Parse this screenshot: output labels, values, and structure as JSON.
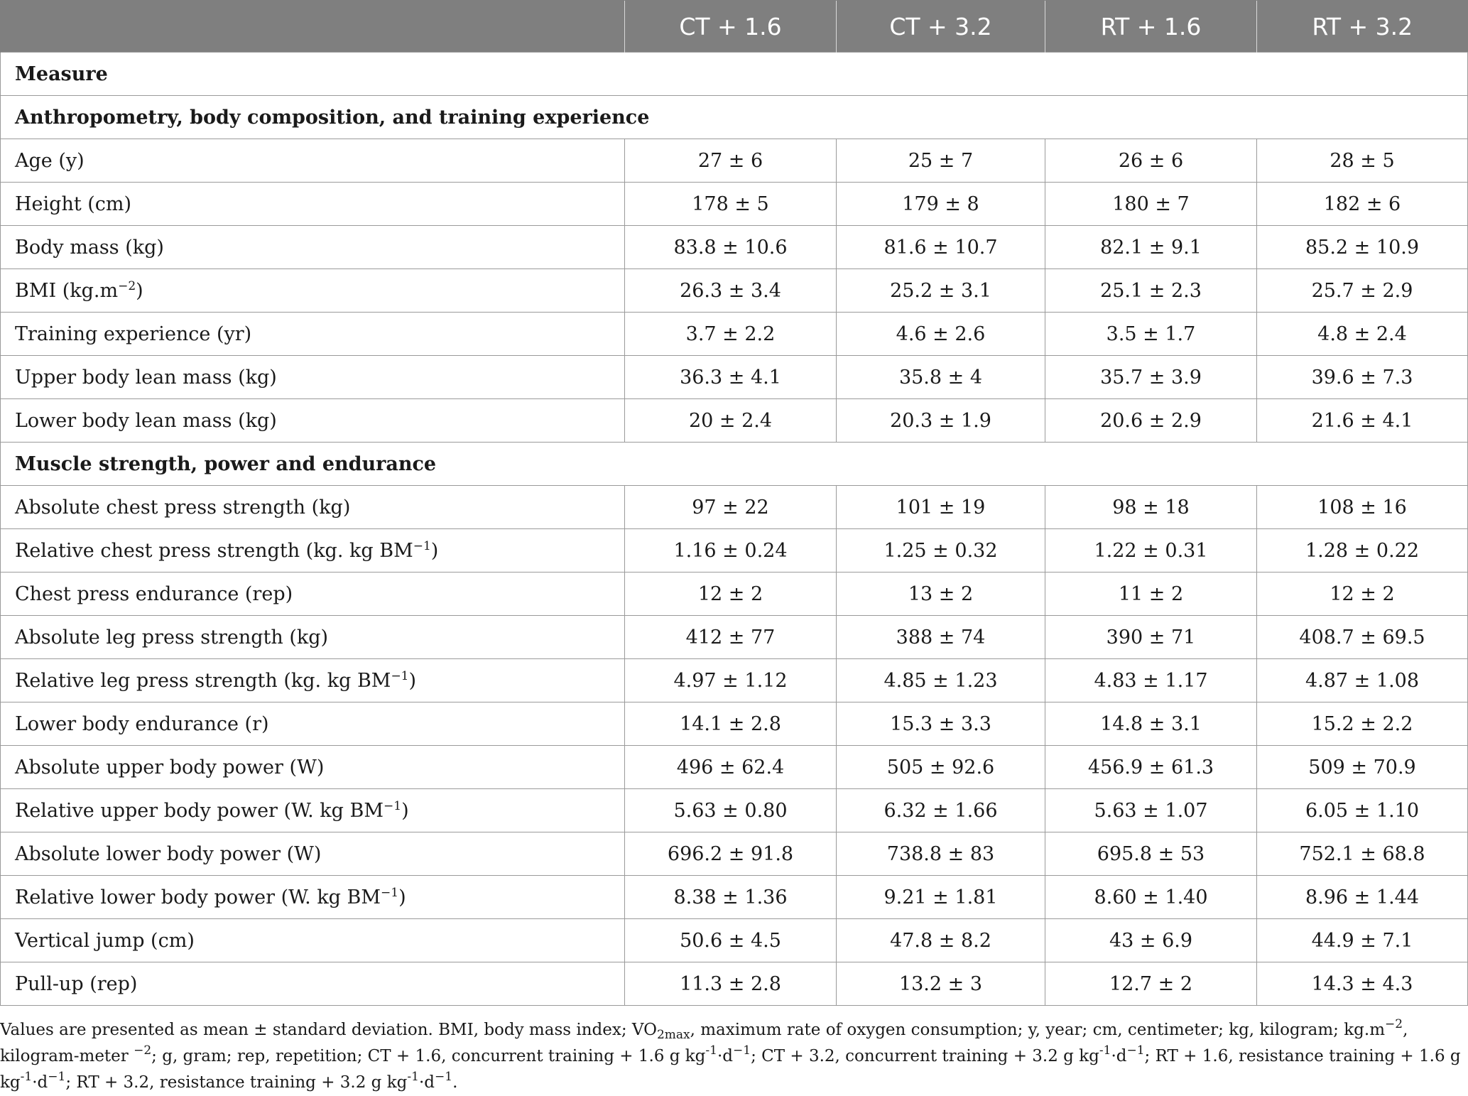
{
  "table": {
    "columns": [
      "",
      "CT + 1.6",
      "CT + 3.2",
      "RT + 1.6",
      "RT + 3.2"
    ],
    "measure_label": "Measure",
    "sections": [
      {
        "title": "Anthropometry, body composition, and training experience",
        "rows": [
          {
            "label": "Age (y)",
            "values": [
              "27 ± 6",
              "25 ± 7",
              "26 ± 6",
              "28 ± 5"
            ]
          },
          {
            "label": "Height (cm)",
            "values": [
              "178 ± 5",
              "179 ± 8",
              "180 ± 7",
              "182 ± 6"
            ]
          },
          {
            "label": "Body mass (kg)",
            "values": [
              "83.8 ± 10.6",
              "81.6 ± 10.7",
              "82.1 ± 9.1",
              "85.2 ± 10.9"
            ]
          },
          {
            "label": "BMI (kg.m",
            "label_sup": "−2",
            "label_tail": ")",
            "values": [
              "26.3 ± 3.4",
              "25.2 ± 3.1",
              "25.1 ± 2.3",
              "25.7 ± 2.9"
            ]
          },
          {
            "label": "Training experience (yr)",
            "values": [
              "3.7 ± 2.2",
              "4.6 ± 2.6",
              "3.5 ± 1.7",
              "4.8 ± 2.4"
            ]
          },
          {
            "label": "Upper body lean mass (kg)",
            "values": [
              "36.3 ± 4.1",
              "35.8 ± 4",
              "35.7 ± 3.9",
              "39.6 ± 7.3"
            ]
          },
          {
            "label": "Lower body lean mass (kg)",
            "values": [
              "20 ± 2.4",
              "20.3 ± 1.9",
              "20.6 ± 2.9",
              "21.6 ± 4.1"
            ]
          }
        ]
      },
      {
        "title": "Muscle strength, power and endurance",
        "rows": [
          {
            "label": "Absolute chest press strength (kg)",
            "values": [
              "97 ± 22",
              "101 ± 19",
              "98 ± 18",
              "108 ± 16"
            ]
          },
          {
            "label": "Relative chest press strength (kg. kg BM",
            "label_sup": "−1",
            "label_tail": ")",
            "values": [
              "1.16 ± 0.24",
              "1.25 ± 0.32",
              "1.22 ± 0.31",
              "1.28 ± 0.22"
            ]
          },
          {
            "label": "Chest press endurance (rep)",
            "values": [
              "12 ± 2",
              "13 ± 2",
              "11 ± 2",
              "12 ± 2"
            ]
          },
          {
            "label": "Absolute leg press strength (kg)",
            "values": [
              "412 ± 77",
              "388 ± 74",
              "390 ± 71",
              "408.7 ± 69.5"
            ]
          },
          {
            "label": "Relative leg press strength (kg. kg BM",
            "label_sup": "−1",
            "label_tail": ")",
            "values": [
              "4.97 ± 1.12",
              "4.85 ± 1.23",
              "4.83 ± 1.17",
              "4.87 ± 1.08"
            ]
          },
          {
            "label": "Lower body endurance (r)",
            "values": [
              "14.1 ± 2.8",
              "15.3 ± 3.3",
              "14.8 ± 3.1",
              "15.2 ± 2.2"
            ]
          },
          {
            "label": "Absolute upper body power (W)",
            "values": [
              "496 ± 62.4",
              "505 ± 92.6",
              "456.9 ± 61.3",
              "509 ± 70.9"
            ]
          },
          {
            "label": "Relative upper body power (W. kg BM",
            "label_sup": "−1",
            "label_tail": ")",
            "values": [
              "5.63 ± 0.80",
              "6.32 ± 1.66",
              "5.63 ± 1.07",
              "6.05 ± 1.10"
            ]
          },
          {
            "label": "Absolute lower body power (W)",
            "values": [
              "696.2 ± 91.8",
              "738.8 ± 83",
              "695.8 ± 53",
              "752.1 ± 68.8"
            ]
          },
          {
            "label": "Relative lower body power (W. kg BM",
            "label_sup": "−1",
            "label_tail": ")",
            "values": [
              "8.38 ± 1.36",
              "9.21 ± 1.81",
              "8.60 ± 1.40",
              "8.96 ± 1.44"
            ]
          },
          {
            "label": "Vertical jump (cm)",
            "values": [
              "50.6 ± 4.5",
              "47.8 ± 8.2",
              "43 ± 6.9",
              "44.9 ± 7.1"
            ]
          },
          {
            "label": "Pull-up (rep)",
            "values": [
              "11.3 ± 2.8",
              "13.2 ± 3",
              "12.7 ± 2",
              "14.3 ± 4.3"
            ]
          }
        ]
      }
    ]
  },
  "footnote": {
    "p1": "Values are presented as mean ± standard deviation. BMI, body mass index; VO",
    "p1_sub": "2max",
    "p2": ", maximum rate of oxygen consumption; y, year; cm, centimeter; kg, kilogram; kg.m",
    "p2_sup": "−2",
    "p3": ", kilogram-meter ",
    "p3_sup": "−2",
    "p4": "; g, gram; rep, repetition; CT + 1.6, concurrent training + 1.6 g kg",
    "p4_sup": "-1",
    "p5": "·d",
    "p5_sup": "−1",
    "p6": "; CT + 3.2, concurrent training + 3.2 g kg",
    "p6_sup": "-1",
    "p7": "·d",
    "p7_sup": "−1",
    "p8": "; RT + 1.6, resistance training + 1.6 g kg",
    "p8_sup": "-1",
    "p9": "·d",
    "p9_sup": "−1",
    "p10": "; RT + 3.2, resistance training + 3.2 g kg",
    "p10_sup": "-1",
    "p11": "·d",
    "p11_sup": "−1",
    "p12": "."
  }
}
